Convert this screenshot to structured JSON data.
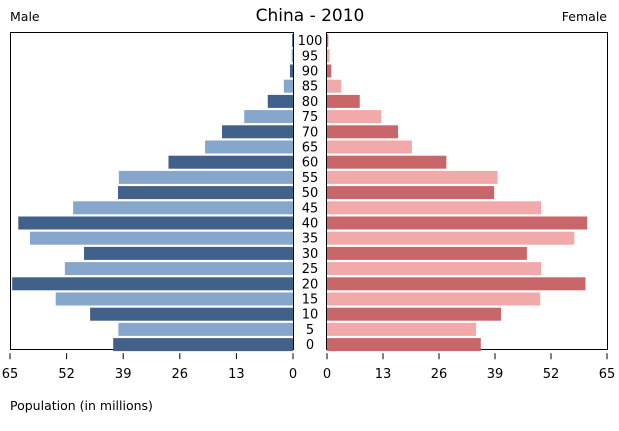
{
  "chart_data": {
    "type": "bar",
    "orientation": "horizontal",
    "title": "China - 2010",
    "left_label": "Male",
    "right_label": "Female",
    "xlabel": "Population (in millions)",
    "xlim": [
      0,
      65
    ],
    "xticks": [
      65,
      52,
      39,
      26,
      13,
      0
    ],
    "categories": [
      "100",
      "95",
      "90",
      "85",
      "80",
      "75",
      "70",
      "65",
      "60",
      "55",
      "50",
      "45",
      "40",
      "35",
      "30",
      "25",
      "20",
      "15",
      "10",
      "5",
      "0"
    ],
    "series": [
      {
        "name": "Male",
        "values": [
          0.2,
          0.3,
          0.7,
          2.1,
          5.8,
          11.2,
          16.3,
          20.2,
          28.6,
          40.0,
          40.2,
          50.5,
          63.1,
          60.4,
          48.0,
          52.4,
          64.5,
          54.5,
          46.6,
          40.1,
          41.3
        ]
      },
      {
        "name": "Female",
        "values": [
          0.3,
          0.6,
          1.0,
          3.3,
          7.6,
          12.6,
          16.5,
          19.7,
          27.7,
          39.6,
          38.8,
          49.7,
          60.4,
          57.4,
          46.4,
          49.7,
          60.0,
          49.5,
          40.4,
          34.6,
          35.7
        ]
      }
    ],
    "colors": {
      "male_dark": "#41618a",
      "male_light": "#87a6cc",
      "female_dark": "#c8666a",
      "female_light": "#f2a9a9"
    }
  }
}
